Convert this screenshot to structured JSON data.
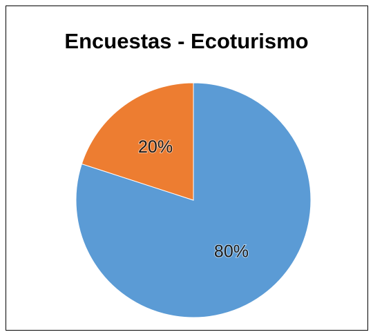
{
  "chart_data": {
    "type": "pie",
    "title": "Encuestas - Ecoturismo",
    "values": [
      80,
      20
    ],
    "value_labels": [
      "80%",
      "20%"
    ],
    "colors": [
      "#5b9bd5",
      "#ed7d31"
    ],
    "start_angle": -90,
    "direction": "clockwise"
  }
}
